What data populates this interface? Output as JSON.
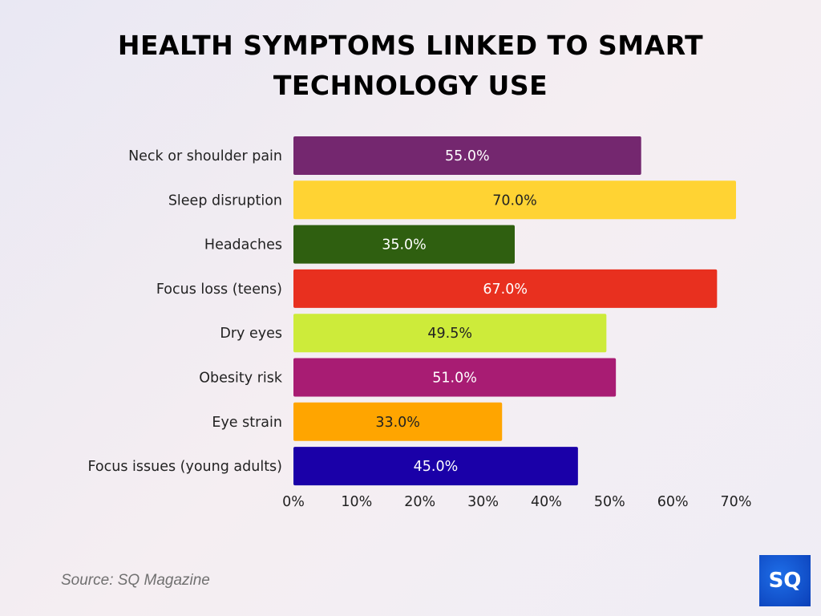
{
  "chart_data": {
    "type": "bar",
    "orientation": "horizontal",
    "title": "HEALTH SYMPTOMS LINKED TO SMART TECHNOLOGY USE",
    "categories": [
      "Neck or shoulder pain",
      "Sleep disruption",
      "Headaches",
      "Focus loss (teens)",
      "Dry eyes",
      "Obesity risk",
      "Eye strain",
      "Focus issues (young adults)"
    ],
    "values": [
      55.0,
      70.0,
      35.0,
      67.0,
      49.5,
      51.0,
      33.0,
      45.0
    ],
    "data_labels": [
      "55.0%",
      "70.0%",
      "35.0%",
      "67.0%",
      "49.5%",
      "51.0%",
      "33.0%",
      "45.0%"
    ],
    "colors": [
      "#74276f",
      "#ffd333",
      "#2f5f10",
      "#e8301f",
      "#cdeb3a",
      "#a81c73",
      "#ffa500",
      "#1a00a8"
    ],
    "label_colors": [
      "#ffffff",
      "#222222",
      "#ffffff",
      "#ffffff",
      "#222222",
      "#ffffff",
      "#222222",
      "#ffffff"
    ],
    "xticks": [
      0,
      10,
      20,
      30,
      40,
      50,
      60,
      70
    ],
    "xtick_labels": [
      "0%",
      "10%",
      "20%",
      "30%",
      "40%",
      "50%",
      "60%",
      "70%"
    ],
    "xlim": [
      0,
      70
    ],
    "grid": false,
    "xlabel": "",
    "ylabel": ""
  },
  "source": "Source: SQ Magazine",
  "logo_text": "SQ"
}
